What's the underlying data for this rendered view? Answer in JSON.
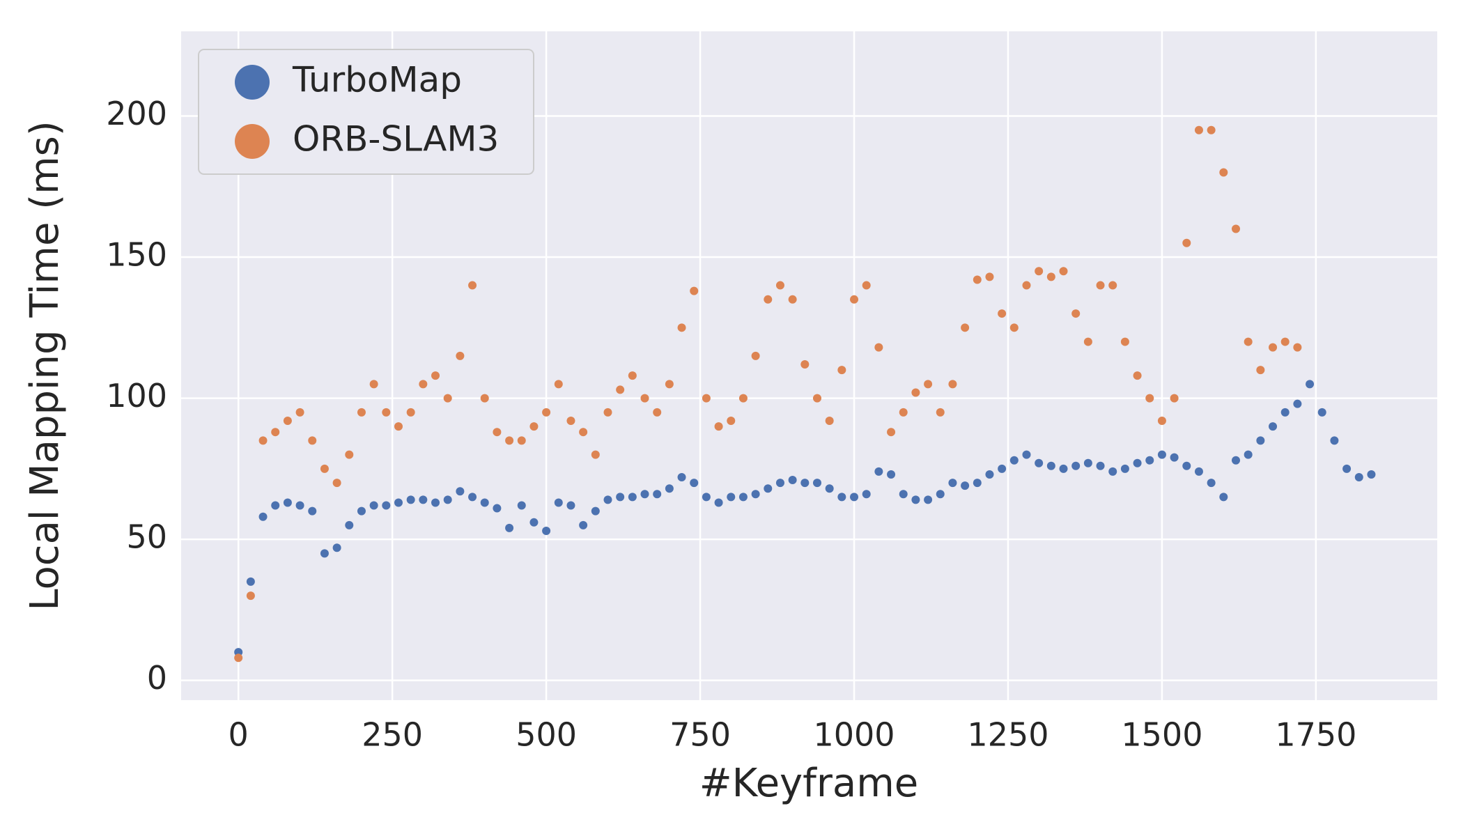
{
  "chart_data": {
    "type": "scatter",
    "xlabel": "#Keyframe",
    "ylabel": "Local Mapping Time (ms)",
    "xlim": [
      -93,
      1947
    ],
    "ylim": [
      -7,
      230
    ],
    "xticks": [
      0,
      250,
      500,
      750,
      1000,
      1250,
      1500,
      1750
    ],
    "yticks": [
      0,
      50,
      100,
      150,
      200
    ],
    "grid": true,
    "legend": "upper left",
    "series": [
      {
        "name": "TurboMap",
        "color": "#4c72b0",
        "x": [
          0,
          20,
          40,
          60,
          80,
          100,
          120,
          140,
          160,
          180,
          200,
          220,
          240,
          260,
          280,
          300,
          320,
          340,
          360,
          380,
          400,
          420,
          440,
          460,
          480,
          500,
          520,
          540,
          560,
          580,
          600,
          620,
          640,
          660,
          680,
          700,
          720,
          740,
          760,
          780,
          800,
          820,
          840,
          860,
          880,
          900,
          920,
          940,
          960,
          980,
          1000,
          1020,
          1040,
          1060,
          1080,
          1100,
          1120,
          1140,
          1160,
          1180,
          1200,
          1220,
          1240,
          1260,
          1280,
          1300,
          1320,
          1340,
          1360,
          1380,
          1400,
          1420,
          1440,
          1460,
          1480,
          1500,
          1520,
          1540,
          1560,
          1580,
          1600,
          1620,
          1640,
          1660,
          1680,
          1700,
          1720,
          1740,
          1760,
          1780,
          1800,
          1820,
          1840
        ],
        "values": [
          10,
          35,
          58,
          62,
          63,
          62,
          60,
          45,
          47,
          55,
          60,
          62,
          62,
          63,
          64,
          64,
          63,
          64,
          67,
          65,
          63,
          61,
          54,
          62,
          56,
          53,
          63,
          62,
          55,
          60,
          64,
          65,
          65,
          66,
          66,
          68,
          72,
          70,
          65,
          63,
          65,
          65,
          66,
          68,
          70,
          71,
          70,
          70,
          68,
          65,
          65,
          66,
          74,
          73,
          66,
          64,
          64,
          66,
          70,
          69,
          70,
          73,
          75,
          78,
          80,
          77,
          76,
          75,
          76,
          77,
          76,
          74,
          75,
          77,
          78,
          80,
          79,
          76,
          74,
          70,
          65,
          78,
          80,
          85,
          90,
          95,
          98,
          105,
          95,
          85,
          75,
          72,
          73
        ]
      },
      {
        "name": "ORB-SLAM3",
        "color": "#dd8452",
        "x": [
          0,
          20,
          40,
          60,
          80,
          100,
          120,
          140,
          160,
          180,
          200,
          220,
          240,
          260,
          280,
          300,
          320,
          340,
          360,
          380,
          400,
          420,
          440,
          460,
          480,
          500,
          520,
          540,
          560,
          580,
          600,
          620,
          640,
          660,
          680,
          700,
          720,
          740,
          760,
          780,
          800,
          820,
          840,
          860,
          880,
          900,
          920,
          940,
          960,
          980,
          1000,
          1020,
          1040,
          1060,
          1080,
          1100,
          1120,
          1140,
          1160,
          1180,
          1200,
          1220,
          1240,
          1260,
          1280,
          1300,
          1320,
          1340,
          1360,
          1380,
          1400,
          1420,
          1440,
          1460,
          1480,
          1500,
          1520,
          1540,
          1560,
          1580,
          1600,
          1620,
          1640,
          1660,
          1680,
          1700,
          1720
        ],
        "values": [
          8,
          30,
          85,
          88,
          92,
          95,
          85,
          75,
          70,
          80,
          95,
          105,
          95,
          90,
          95,
          105,
          108,
          100,
          115,
          140,
          100,
          88,
          85,
          85,
          90,
          95,
          105,
          92,
          88,
          80,
          95,
          103,
          108,
          100,
          95,
          105,
          125,
          138,
          100,
          90,
          92,
          100,
          115,
          135,
          140,
          135,
          112,
          100,
          92,
          110,
          135,
          140,
          118,
          88,
          95,
          102,
          105,
          95,
          105,
          125,
          142,
          143,
          130,
          125,
          140,
          145,
          143,
          145,
          130,
          120,
          140,
          140,
          120,
          108,
          100,
          92,
          100,
          155,
          195,
          195,
          180,
          160,
          120,
          110,
          118,
          120,
          118
        ]
      }
    ]
  }
}
